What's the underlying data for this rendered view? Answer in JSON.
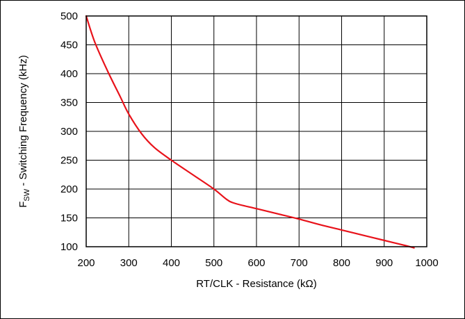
{
  "chart_data": {
    "type": "line",
    "title": "",
    "xlabel": "RT/CLK - Resistance (kΩ)",
    "ylabel": {
      "main": "F",
      "sub": "SW",
      "rest": " - Switching Frequency (kHz)"
    },
    "xlim": [
      200,
      1000
    ],
    "ylim": [
      100,
      500
    ],
    "xticks": [
      200,
      300,
      400,
      500,
      600,
      700,
      800,
      900,
      1000
    ],
    "yticks": [
      100,
      150,
      200,
      250,
      300,
      350,
      400,
      450,
      500
    ],
    "grid": true,
    "legend": "none",
    "series": [
      {
        "color": "#e8121a",
        "x": [
          200,
          220,
          250,
          280,
          300,
          330,
          360,
          400,
          450,
          500,
          530,
          550,
          600,
          650,
          700,
          750,
          800,
          850,
          900,
          950,
          970
        ],
        "y": [
          500,
          455,
          405,
          360,
          330,
          296,
          272,
          250,
          225,
          200,
          182,
          175,
          166,
          157,
          148,
          138,
          129,
          120,
          111,
          102,
          98
        ]
      }
    ]
  }
}
